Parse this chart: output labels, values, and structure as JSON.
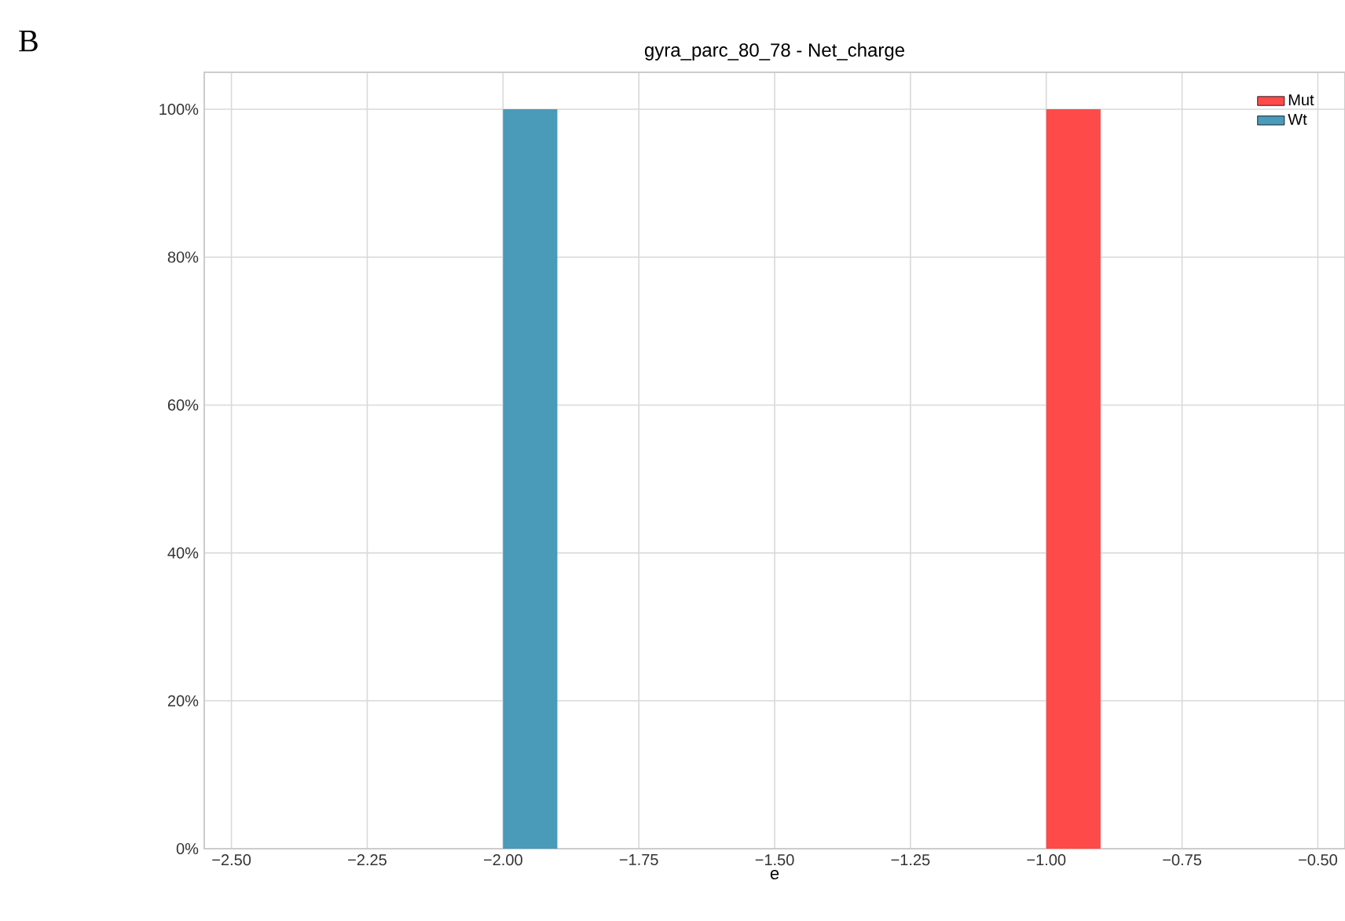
{
  "chart_data": {
    "type": "histogram",
    "title": "gyra_parc_80_78 - Net_charge",
    "xlabel": "e",
    "annotations": [
      "B"
    ],
    "bins": [
      -2.0,
      -1.9,
      -1.8,
      -1.7,
      -1.6,
      -1.5,
      -1.4,
      -1.3,
      -1.2,
      -1.1,
      -1.0,
      -0.9
    ],
    "series": [
      {
        "name": "Mut",
        "color": "#ff4a4a",
        "values": [
          0,
          0,
          0,
          0,
          0,
          0,
          0,
          0,
          0,
          0,
          100
        ]
      },
      {
        "name": "Wt",
        "color": "#4a9aba",
        "values": [
          100,
          0,
          0,
          0,
          0,
          0,
          0,
          0,
          0,
          0,
          0
        ]
      }
    ],
    "xlim": [
      -2.55,
      -0.45
    ],
    "ylim": [
      0,
      105
    ],
    "xticks": [
      {
        "value": -2.5,
        "label": "−2.50"
      },
      {
        "value": -2.25,
        "label": "−2.25"
      },
      {
        "value": -2.0,
        "label": "−2.00"
      },
      {
        "value": -1.75,
        "label": "−1.75"
      },
      {
        "value": -1.5,
        "label": "−1.50"
      },
      {
        "value": -1.25,
        "label": "−1.25"
      },
      {
        "value": -1.0,
        "label": "−1.00"
      },
      {
        "value": -0.75,
        "label": "−0.75"
      },
      {
        "value": -0.5,
        "label": "−0.50"
      }
    ],
    "yticks": [
      {
        "value": 0,
        "label": "0%"
      },
      {
        "value": 20,
        "label": "20%"
      },
      {
        "value": 40,
        "label": "40%"
      },
      {
        "value": 60,
        "label": "60%"
      },
      {
        "value": 80,
        "label": "80%"
      },
      {
        "value": 100,
        "label": "100%"
      }
    ],
    "grid": true,
    "legend": "top right"
  }
}
